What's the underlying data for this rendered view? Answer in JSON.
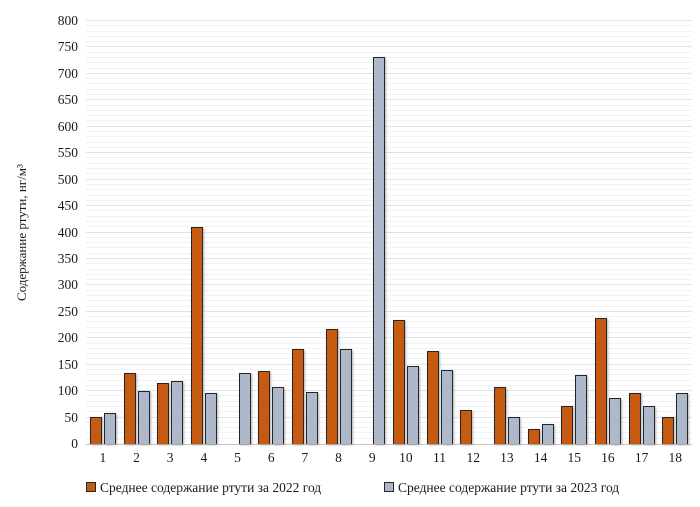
{
  "chart_data": {
    "type": "bar",
    "title": "",
    "xlabel": "",
    "ylabel": "Содержание ртути, нг/м³",
    "ylim": [
      0,
      800
    ],
    "ytick_step": 50,
    "minor_gridline_step": 10,
    "grid": true,
    "legend_position": "bottom",
    "categories": [
      "1",
      "2",
      "3",
      "4",
      "5",
      "6",
      "7",
      "8",
      "9",
      "10",
      "11",
      "12",
      "13",
      "14",
      "15",
      "16",
      "17",
      "18"
    ],
    "series": [
      {
        "name": "Среднее содержание ртути за 2022 год",
        "color": "#C55A11",
        "values": [
          51,
          134,
          115,
          410,
          0,
          139,
          179,
          217,
          0,
          234,
          176,
          64,
          108,
          29,
          71,
          238,
          97,
          52
        ]
      },
      {
        "name": "Среднее содержание ртути за 2023 год",
        "color": "#ADB9CA",
        "values": [
          58,
          100,
          119,
          97,
          135,
          107,
          99,
          180,
          731,
          148,
          140,
          0,
          51,
          37,
          130,
          87,
          72,
          96
        ]
      }
    ],
    "colors": {
      "bar_border": "#262626",
      "major_gridline": "#DEE4EE",
      "minor_gridline": "#F2F3F6",
      "axis_line": "#C6C6C6",
      "text": "#1a1a1a",
      "background": "#ffffff"
    }
  }
}
